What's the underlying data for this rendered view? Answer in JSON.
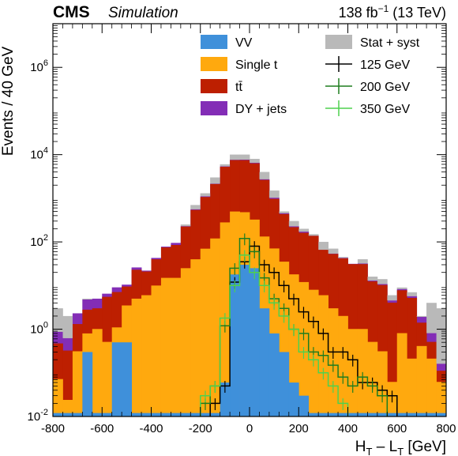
{
  "header": {
    "experiment": "CMS",
    "tag": "Simulation",
    "lumi": "138 fb",
    "lumi_exp": "−1",
    "energy": "(13 TeV)"
  },
  "chart_data": {
    "type": "bar",
    "stacked": true,
    "log_y": true,
    "xlabel_main": "H",
    "xlabel_sub1": "T",
    "xlabel_mid": " – L",
    "xlabel_sub2": "T",
    "xlabel_unit": " [GeV]",
    "ylabel": "Events / 40 GeV",
    "xlim": [
      -800,
      800
    ],
    "ylim": [
      0.01,
      10000000
    ],
    "x_ticks": [
      "-800",
      "-600",
      "-400",
      "-200",
      "0",
      "200",
      "400",
      "600",
      "800"
    ],
    "y_ticks": [
      {
        "base": "10",
        "exp": "-2",
        "value": 0.01
      },
      {
        "base": "10",
        "exp": "0",
        "value": 1
      },
      {
        "base": "10",
        "exp": "2",
        "value": 100
      },
      {
        "base": "10",
        "exp": "4",
        "value": 10000
      },
      {
        "base": "10",
        "exp": "6",
        "value": 1000000
      }
    ],
    "bin_edges": [
      -800,
      -760,
      -720,
      -680,
      -640,
      -600,
      -560,
      -520,
      -480,
      -440,
      -400,
      -360,
      -320,
      -280,
      -240,
      -200,
      -160,
      -120,
      -80,
      -40,
      0,
      40,
      80,
      120,
      160,
      200,
      240,
      280,
      320,
      360,
      400,
      440,
      480,
      520,
      560,
      600,
      640,
      680,
      720,
      760,
      800
    ],
    "legend_position": "top",
    "stack": [
      {
        "name": "VV",
        "color": "#3f90da",
        "values": [
          0.012,
          0.012,
          0.012,
          0.3,
          0.012,
          0.012,
          0.5,
          0.5,
          0.012,
          0.012,
          0.012,
          0.012,
          0.012,
          0.012,
          0.012,
          0.012,
          0.012,
          0.06,
          18,
          30,
          25,
          3,
          0.8,
          0.3,
          0.06,
          0.03,
          0.012,
          0.012,
          0.012,
          0.012,
          0.012,
          0.012,
          0.012,
          0.012,
          0.012,
          0.012,
          0.012,
          0.012,
          0.012,
          0.012
        ]
      },
      {
        "name": "Single t",
        "color": "#ffa90e",
        "values": [
          0.06,
          0.012,
          0.3,
          0.5,
          1,
          0.5,
          0.6,
          3,
          5,
          6,
          10,
          15,
          15,
          25,
          40,
          70,
          120,
          280,
          480,
          450,
          300,
          130,
          70,
          35,
          18,
          12,
          8,
          6,
          3,
          2,
          1,
          1,
          0.5,
          0.3,
          0.05,
          0.8,
          0.2,
          0.4,
          0.2,
          0.05
        ]
      },
      {
        "name": "tt̄",
        "color": "#bd1f01",
        "values": [
          0.4,
          0.3,
          1,
          2,
          2,
          5,
          6,
          6,
          18,
          15,
          30,
          60,
          70,
          200,
          500,
          1000,
          2000,
          5000,
          7000,
          7000,
          6000,
          2500,
          900,
          400,
          200,
          150,
          130,
          60,
          50,
          40,
          30,
          30,
          12,
          10,
          4,
          7,
          5,
          1,
          0.3,
          0.05
        ]
      },
      {
        "name": "DY + jets",
        "color": "#832db6",
        "values": [
          0.4,
          0.3,
          1,
          2,
          2,
          1,
          2,
          1,
          3,
          1,
          3,
          3,
          10,
          5,
          20,
          40,
          40,
          100,
          150,
          200,
          200,
          100,
          60,
          20,
          10,
          10,
          1,
          0.01,
          1,
          1,
          0.5,
          1,
          0.5,
          0.5,
          0.5,
          0.5,
          0.5,
          0.5,
          0.3,
          0.05
        ]
      }
    ],
    "stat_syst": {
      "name": "Stat + syst",
      "color": "#b9b9b9",
      "values": [
        3,
        2,
        2,
        5,
        4,
        5,
        7,
        6,
        25,
        20,
        30,
        70,
        80,
        250,
        700,
        1300,
        3000,
        6000,
        10000,
        10000,
        8000,
        4000,
        1500,
        500,
        300,
        200,
        150,
        100,
        70,
        45,
        30,
        40,
        16,
        14,
        6,
        9,
        7,
        2,
        4,
        3
      ]
    },
    "signals": [
      {
        "name": "125 GeV",
        "color": "#000000",
        "values": [
          0.005,
          0.005,
          0.005,
          0.005,
          0.005,
          0.005,
          0.005,
          0.005,
          0.005,
          0.005,
          0.005,
          0.005,
          0.005,
          0.005,
          0.005,
          0.005,
          0.02,
          0.05,
          12,
          35,
          80,
          30,
          20,
          10,
          5,
          2.5,
          1.5,
          0.8,
          0.3,
          0.3,
          0.2,
          0.06,
          0.06,
          0.04,
          0.03,
          0.005,
          0.005,
          0.005,
          0.005,
          0.005
        ]
      },
      {
        "name": "200 GeV",
        "color": "#1e7d1e",
        "values": [
          0.005,
          0.005,
          0.005,
          0.005,
          0.005,
          0.005,
          0.005,
          0.005,
          0.005,
          0.005,
          0.005,
          0.005,
          0.005,
          0.005,
          0.005,
          0.02,
          0.05,
          1.2,
          25,
          120,
          60,
          15,
          5,
          3,
          1,
          0.8,
          0.3,
          0.25,
          0.15,
          0.08,
          0.05,
          0.08,
          0.05,
          0.03,
          0.005,
          0.005,
          0.005,
          0.005,
          0.005,
          0.005
        ]
      },
      {
        "name": "350 GeV",
        "color": "#4ed14e",
        "values": [
          0.005,
          0.005,
          0.005,
          0.005,
          0.005,
          0.005,
          0.005,
          0.005,
          0.005,
          0.005,
          0.005,
          0.005,
          0.005,
          0.005,
          0.005,
          0.03,
          0.05,
          1.8,
          10,
          50,
          20,
          10,
          4,
          2,
          1,
          0.3,
          0.2,
          0.1,
          0.05,
          0.02,
          0.005,
          0.005,
          0.005,
          0.005,
          0.005,
          0.005,
          0.005,
          0.005,
          0.005,
          0.005
        ]
      }
    ]
  }
}
